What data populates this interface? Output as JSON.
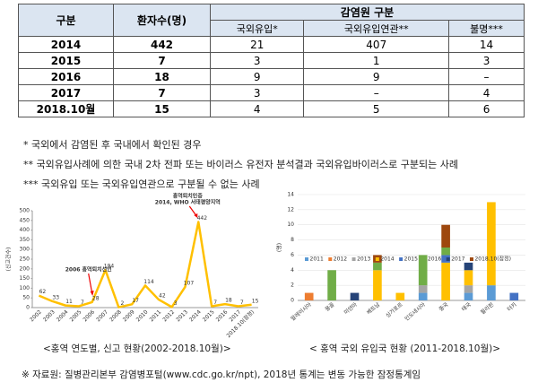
{
  "table": {
    "headers": [
      "구분",
      "환자수(명)",
      "감염원 구분"
    ],
    "subheaders": [
      "국외유입*",
      "국외유입연관**",
      "불명***"
    ],
    "rows": [
      [
        "2014",
        442,
        21,
        407,
        14
      ],
      [
        "2015",
        7,
        3,
        1,
        3
      ],
      [
        "2016",
        18,
        9,
        9,
        "–"
      ],
      [
        "2017",
        7,
        3,
        "–",
        4
      ],
      [
        "2018.10월",
        15,
        4,
        5,
        6
      ]
    ]
  },
  "notes": [
    "* 국외에서 감염된 후 국내에서 확인된 경우",
    "** 국외유입사례에 의한 국내 2차 전파 또는 바이러스 유전자 분석결과 국외유입바이러스로 구분되는 사례",
    "*** 국외유입 또는 국외유입연관으로 구분될 수 없는 사례"
  ],
  "chart_data": [
    {
      "type": "line",
      "caption": "<홍역 연도별, 신고 현황(2002-2018.10월)>",
      "y_label": "(신고건수)",
      "categories": [
        "2002",
        "2003",
        "2004",
        "2005",
        "2006",
        "2007",
        "2008",
        "2009",
        "2010",
        "2011",
        "2012",
        "2013",
        "2014",
        "2015",
        "2016",
        "2017",
        "2018.10(잠정)"
      ],
      "series": [
        {
          "color": "#ffc000",
          "values": [
            62,
            33,
            11,
            7,
            28,
            194,
            2,
            17,
            114,
            42,
            3,
            107,
            442,
            7,
            18,
            7,
            15
          ]
        }
      ],
      "ylim": [
        0,
        500
      ],
      "yticks": [
        0,
        50,
        100,
        150,
        200,
        250,
        300,
        350,
        400,
        450,
        500
      ],
      "grid": false,
      "annotations": [
        "2006 홍역퇴치선언",
        "홍역퇴치인증",
        "2014, WHO 서태평양지역"
      ]
    },
    {
      "type": "bar",
      "stacked": true,
      "caption": "< 홍역 국외 유입국 현황 (2011-2018.10월)>",
      "y_label": "(명)",
      "categories": [
        "말레이시아",
        "몽골",
        "미얀마",
        "베트남",
        "싱가포르",
        "인도네시아",
        "중국",
        "태국",
        "필리핀",
        "터키"
      ],
      "series": [
        {
          "name": "2011",
          "color": "#5b9bd5",
          "values": [
            0,
            0,
            0,
            0,
            0,
            1,
            0,
            1,
            2,
            0
          ]
        },
        {
          "name": "2012",
          "color": "#ed7d31",
          "values": [
            1,
            0,
            0,
            0,
            0,
            0,
            0,
            0,
            0,
            0
          ]
        },
        {
          "name": "2013",
          "color": "#a5a5a5",
          "values": [
            0,
            0,
            0,
            0,
            0,
            1,
            0,
            1,
            0,
            0
          ]
        },
        {
          "name": "2014",
          "color": "#ffc000",
          "values": [
            0,
            0,
            0,
            4,
            1,
            0,
            5,
            2,
            11,
            0
          ]
        },
        {
          "name": "2015",
          "color": "#4472c4",
          "values": [
            0,
            0,
            0,
            0,
            0,
            0,
            1,
            0,
            0,
            1
          ]
        },
        {
          "name": "2016",
          "color": "#70ad47",
          "values": [
            0,
            4,
            0,
            1,
            0,
            4,
            1,
            0,
            0,
            0
          ]
        },
        {
          "name": "2017",
          "color": "#264478",
          "values": [
            0,
            0,
            1,
            0,
            0,
            0,
            0,
            1,
            0,
            0
          ]
        },
        {
          "name": "2018.10(잠정)",
          "color": "#9e480e",
          "values": [
            0,
            0,
            0,
            1,
            0,
            0,
            3,
            0,
            0,
            0
          ]
        }
      ],
      "ylim": [
        0,
        14
      ],
      "yticks": [
        0,
        2,
        4,
        6,
        8,
        10,
        12,
        14
      ],
      "grid": true,
      "legend": "bottom-left"
    }
  ],
  "source": "※ 자료원: 질병관리본부 감염병포털(www.cdc.go.kr/npt), 2018년 통계는 변동 가능한 잠정통계임"
}
